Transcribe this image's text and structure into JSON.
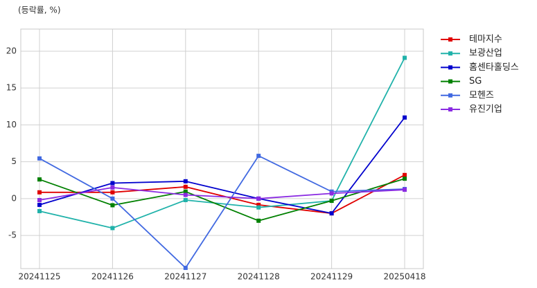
{
  "chart_data": {
    "type": "line",
    "y_label": "(등락률, %)",
    "categories": [
      "20241125",
      "20241126",
      "20241127",
      "20241128",
      "20241129",
      "20250418"
    ],
    "series": [
      {
        "name": "테마지수",
        "color": "#e00000",
        "values": [
          0.85,
          0.85,
          1.6,
          -0.85,
          -2.0,
          3.2
        ]
      },
      {
        "name": "보광산업",
        "color": "#20b2aa",
        "values": [
          -1.7,
          -4.0,
          -0.2,
          -1.2,
          -0.3,
          19.1
        ]
      },
      {
        "name": "홈센타홀딩스",
        "color": "#0000cd",
        "values": [
          -0.85,
          2.1,
          2.35,
          0,
          -2.0,
          11.0
        ]
      },
      {
        "name": "SG",
        "color": "#008000",
        "values": [
          2.6,
          -0.9,
          0.95,
          -3.0,
          -0.3,
          2.7
        ]
      },
      {
        "name": "모헨즈",
        "color": "#4169e1",
        "values": [
          5.45,
          0,
          -9.4,
          5.8,
          0.95,
          1.3
        ]
      },
      {
        "name": "유진기업",
        "color": "#8a2be2",
        "values": [
          -0.2,
          1.5,
          0.5,
          0,
          0.7,
          1.2
        ]
      }
    ],
    "ylim": [
      -9.5,
      23
    ],
    "yticks": [
      -5,
      0,
      5,
      10,
      15,
      20
    ],
    "grid": true,
    "legend": "right"
  }
}
